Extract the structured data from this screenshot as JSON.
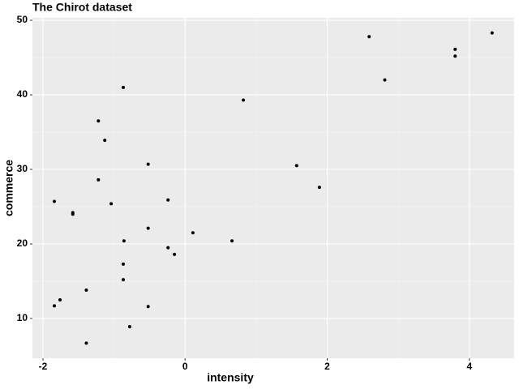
{
  "chart_data": {
    "type": "scatter",
    "title": "The Chirot dataset",
    "x_label": "intensity",
    "y_label": "commerce",
    "series": [
      {
        "color": "#000000",
        "x": [
          2.59,
          4.32,
          3.8,
          3.8,
          2.81,
          -0.87,
          0.82,
          -1.22,
          -1.13,
          -0.52,
          1.57,
          -1.22,
          1.89,
          -1.84,
          -1.04,
          -0.24,
          -1.58,
          -1.58,
          -0.52,
          0.11,
          -0.86,
          0.66,
          -0.24,
          -0.15,
          -0.87,
          -0.87,
          -1.39,
          -1.76,
          -1.84,
          -0.52,
          -0.78,
          -1.39
        ],
        "values": [
          47.8,
          48.3,
          46.1,
          45.2,
          42.0,
          41.0,
          39.3,
          36.5,
          33.9,
          30.7,
          30.5,
          28.6,
          27.6,
          25.7,
          25.4,
          25.9,
          24.2,
          24.0,
          22.1,
          21.5,
          20.4,
          20.4,
          19.5,
          18.6,
          17.3,
          15.2,
          13.8,
          12.5,
          11.7,
          11.6,
          8.9,
          6.7
        ]
      }
    ],
    "xlim": [
      -2.148,
      4.63
    ],
    "ylim": [
      4.67,
      50.33
    ],
    "xticks": [
      -2,
      0,
      2,
      4
    ],
    "yticks": [
      10,
      20,
      30,
      40,
      50
    ],
    "grid": true
  }
}
